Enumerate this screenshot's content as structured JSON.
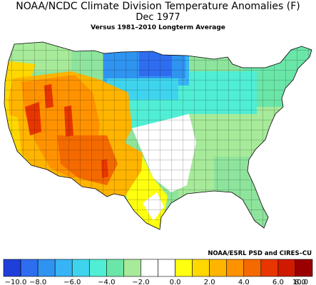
{
  "title": {
    "line1": "NOAA/NCDC Climate Division Temperature Anomalies (F)",
    "line2": "Dec 1977",
    "line3": "Versus 1981–2010 Longterm Average"
  },
  "credit": "NOAA/ESRL PSD and CIRES–CU",
  "colors": {
    "bins": [
      "#1f3fd9",
      "#2f6df0",
      "#2f93f0",
      "#37b4f5",
      "#3fd4ee",
      "#50eed4",
      "#6ae6a8",
      "#a6ea9a",
      "#ffffff",
      "#ffffff",
      "#ffff10",
      "#ffd800",
      "#ffb400",
      "#ff9200",
      "#f46a00",
      "#e83600",
      "#d01a00",
      "#9a0000"
    ],
    "boundary": "#000000"
  },
  "legend": {
    "tick_labels": [
      "−10.0",
      "−8.0",
      "−6.0",
      "−4.0",
      "−2.0",
      "0.0",
      "2.0",
      "4.0",
      "6.0",
      "8.0",
      "10.0"
    ]
  }
}
